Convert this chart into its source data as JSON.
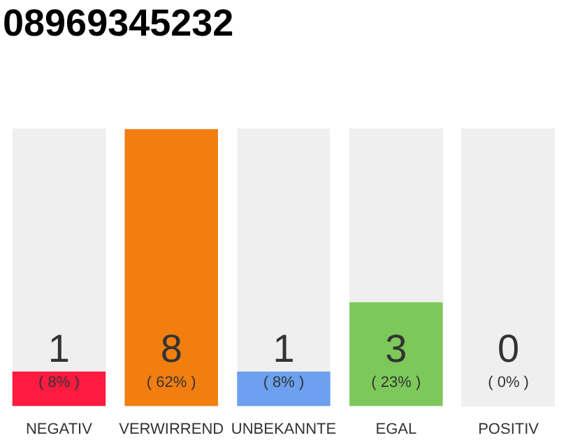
{
  "chart_data": {
    "type": "bar",
    "title": "08969345232",
    "categories": [
      "NEGATIV",
      "VERWIRREND",
      "UNBEKANNTE",
      "EGAL",
      "POSITIV"
    ],
    "values": [
      1,
      8,
      1,
      3,
      0
    ],
    "colors": [
      "#ff1a40",
      "#f27e0f",
      "#6ca1f0",
      "#7dc85a",
      "#c8c8c8"
    ],
    "ylim": [
      0,
      8
    ],
    "tick_labels": "x",
    "data_labels": true,
    "grid": false,
    "legend": false,
    "annotations": [
      "( 8% )",
      "( 62% )",
      "( 8% )",
      "( 23% )",
      "( 0% )"
    ]
  }
}
